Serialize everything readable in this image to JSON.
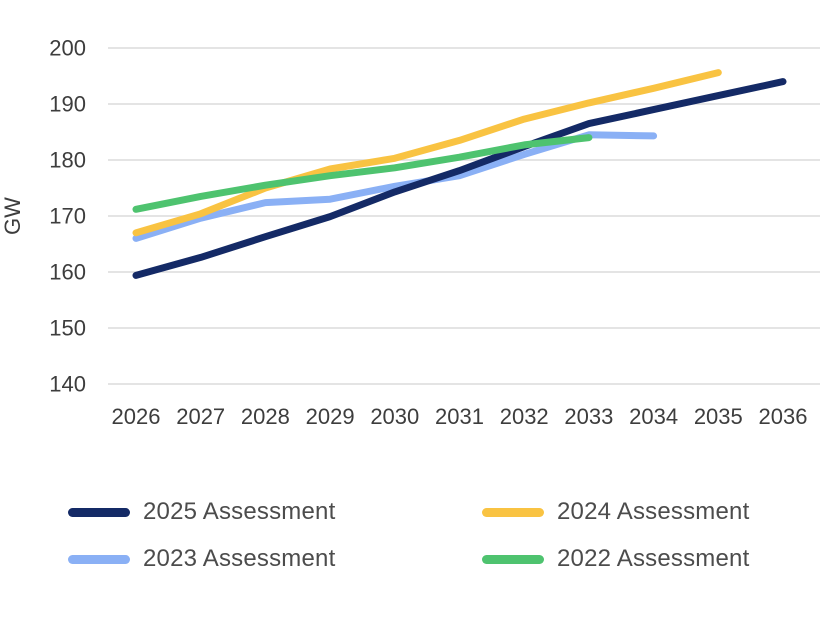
{
  "chart_data": {
    "type": "line",
    "title": "",
    "xlabel": "",
    "ylabel": "GW",
    "categories": [
      "2026",
      "2027",
      "2028",
      "2029",
      "2030",
      "2031",
      "2032",
      "2033",
      "2034",
      "2035",
      "2036"
    ],
    "yticks": [
      140,
      150,
      160,
      170,
      180,
      190,
      200
    ],
    "ylim": [
      140,
      200
    ],
    "grid": "horizontal-only",
    "legend_position": "bottom",
    "series": [
      {
        "name": "2025 Assessment",
        "color": "#142a66",
        "values": [
          159.4,
          162.6,
          166.3,
          169.9,
          174.3,
          178.1,
          182.4,
          186.5,
          189.0,
          191.5,
          194.0
        ]
      },
      {
        "name": "2024 Assessment",
        "color": "#f9c342",
        "values": [
          167.0,
          170.4,
          175.0,
          178.4,
          180.3,
          183.5,
          187.3,
          190.2,
          192.8,
          195.6,
          null
        ]
      },
      {
        "name": "2023 Assessment",
        "color": "#8ab0f5",
        "values": [
          166.0,
          169.6,
          172.4,
          173.0,
          175.3,
          177.2,
          181.0,
          184.5,
          184.3,
          null,
          null
        ]
      },
      {
        "name": "2022 Assessment",
        "color": "#4ec36f",
        "values": [
          171.2,
          173.5,
          175.5,
          177.2,
          178.6,
          180.5,
          182.7,
          184.0,
          null,
          null,
          null
        ]
      }
    ]
  },
  "axis": {
    "ylabel": "GW"
  }
}
